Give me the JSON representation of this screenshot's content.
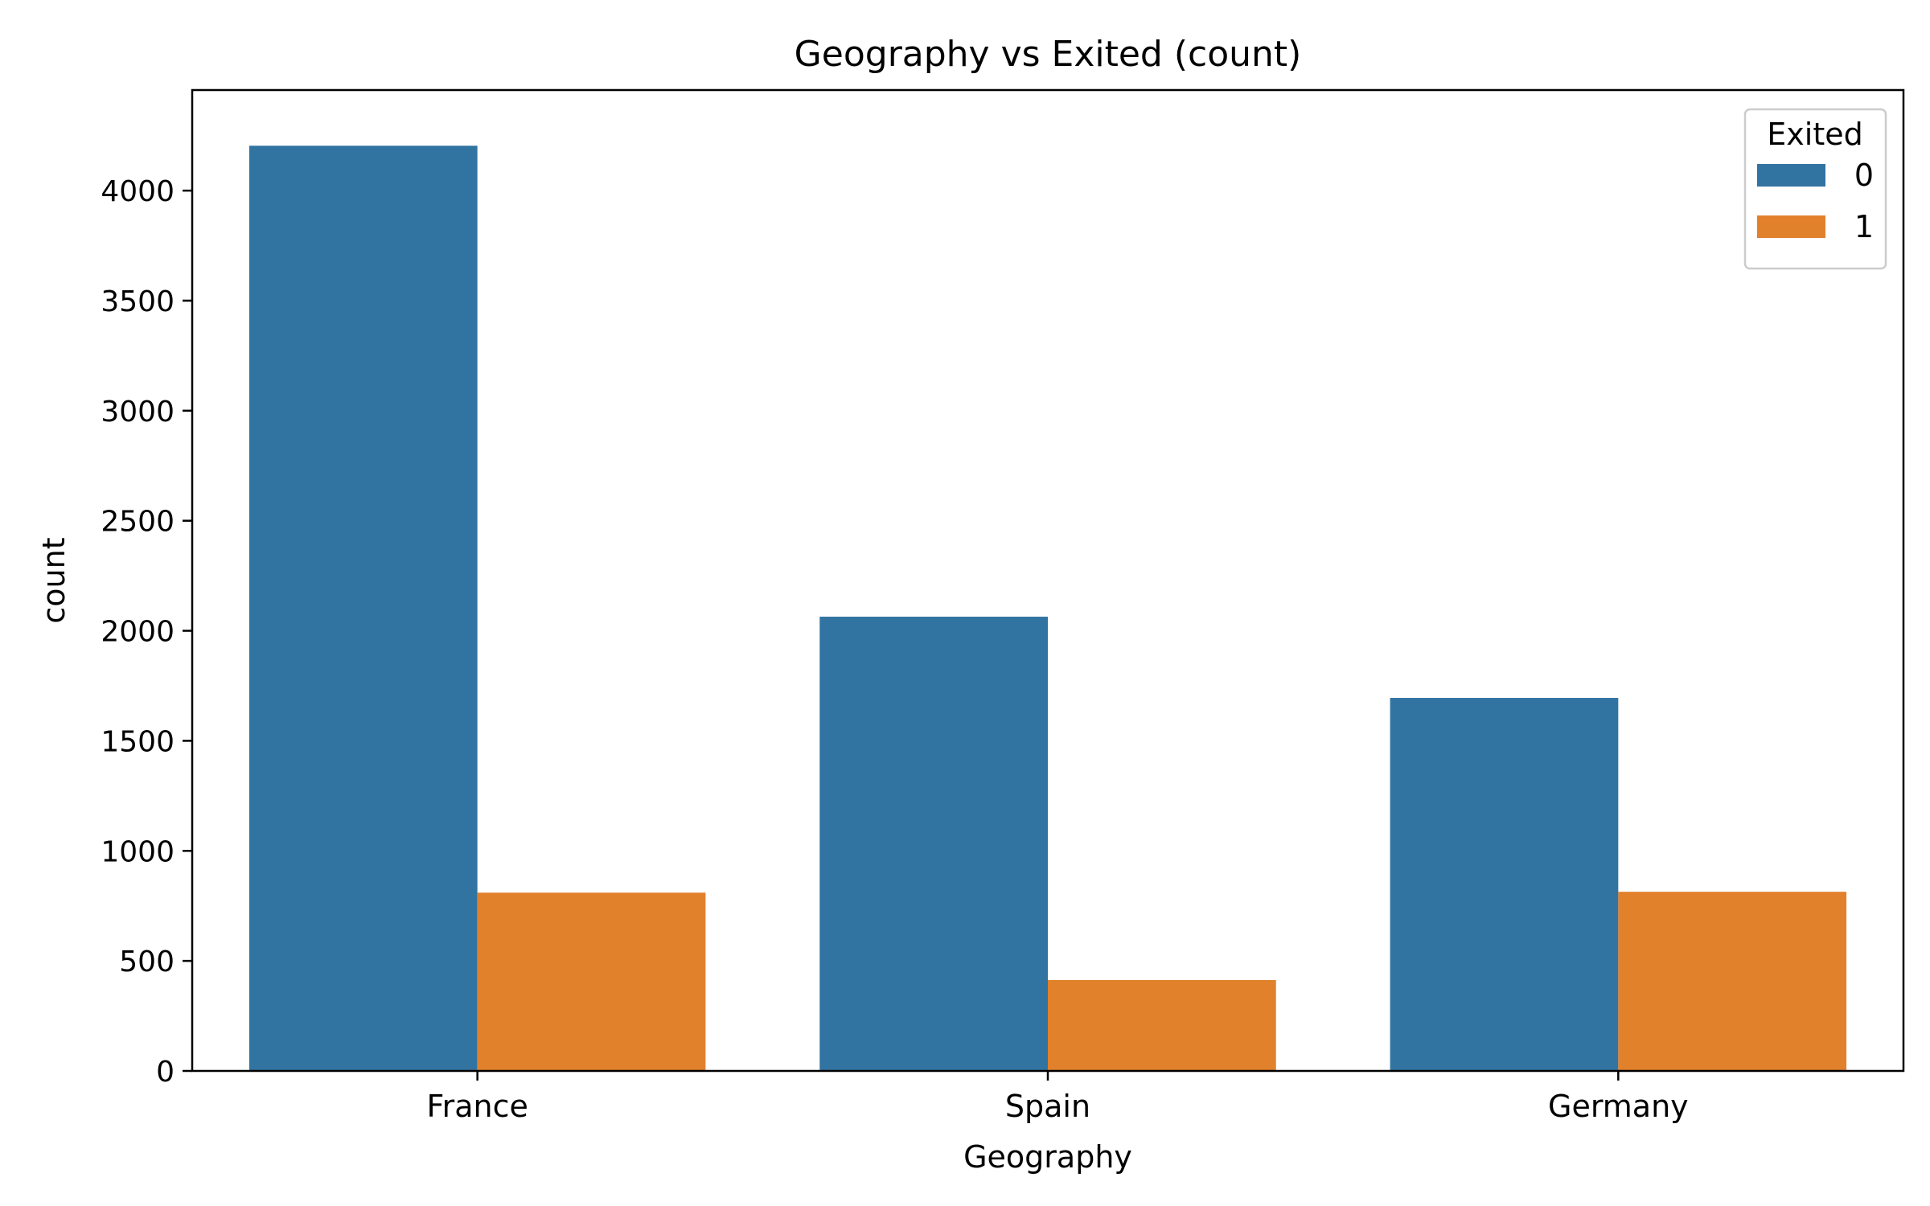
{
  "chart_data": {
    "type": "bar",
    "title": "Geography vs Exited (count)",
    "xlabel": "Geography",
    "ylabel": "count",
    "categories": [
      "France",
      "Spain",
      "Germany"
    ],
    "series": [
      {
        "name": "0",
        "values": [
          4204,
          2064,
          1695
        ],
        "color": "#3274a1"
      },
      {
        "name": "1",
        "values": [
          810,
          413,
          814
        ],
        "color": "#e1812c"
      }
    ],
    "ylim": [
      0,
      4457
    ],
    "yticks": [
      0,
      500,
      1000,
      1500,
      2000,
      2500,
      3000,
      3500,
      4000
    ],
    "grid": false,
    "legend": {
      "title": "Exited",
      "position": "top-right"
    }
  }
}
